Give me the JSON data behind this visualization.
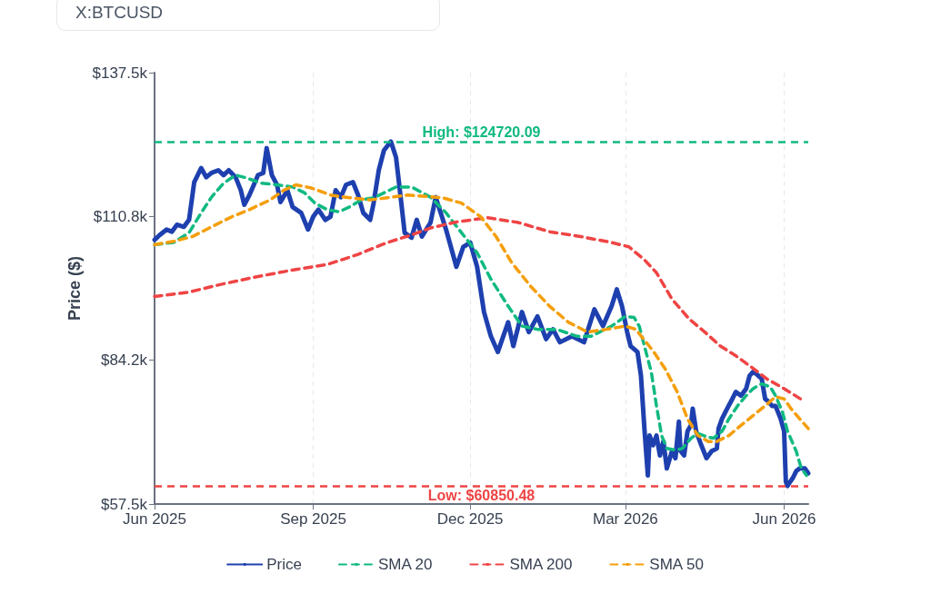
{
  "chart_data": {
    "type": "line",
    "title": "X:BTCUSD",
    "ylabel": "Price ($)",
    "xlim": [
      "2025-06-01",
      "2026-06-15"
    ],
    "xticks": [
      {
        "value": "2025-06-01",
        "label": "Jun 2025"
      },
      {
        "value": "2025-09-01",
        "label": "Sep 2025"
      },
      {
        "value": "2025-12-01",
        "label": "Dec 2025"
      },
      {
        "value": "2026-03-01",
        "label": "Mar 2026"
      },
      {
        "value": "2026-06-01",
        "label": "Jun 2026"
      }
    ],
    "ylim": [
      57500,
      137500
    ],
    "yticks": [
      {
        "value": 57500,
        "label": "$57.5k"
      },
      {
        "value": 84166.67,
        "label": "$84.2k"
      },
      {
        "value": 110833.33,
        "label": "$110.8k"
      },
      {
        "value": 137500,
        "label": "$137.5k"
      }
    ],
    "grid": "x",
    "legend": "bottom",
    "marker": "none",
    "ref_lines": [
      {
        "axis": "y",
        "value": 124720.09,
        "label": "High: $124720.09",
        "color": "#10b981",
        "line_style": "dashed"
      },
      {
        "axis": "y",
        "value": 60850.48,
        "label": "Low: $60850.48",
        "color": "#ef4444",
        "line_style": "dashed"
      }
    ],
    "series": [
      {
        "name": "Price",
        "color": "#1e40af",
        "line_style": "solid",
        "x": [
          "2025-06-01",
          "2025-06-04",
          "2025-06-08",
          "2025-06-11",
          "2025-06-14",
          "2025-06-18",
          "2025-06-21",
          "2025-06-24",
          "2025-06-28",
          "2025-07-01",
          "2025-07-04",
          "2025-07-08",
          "2025-07-11",
          "2025-07-14",
          "2025-07-18",
          "2025-07-21",
          "2025-07-23",
          "2025-07-26",
          "2025-07-31",
          "2025-08-03",
          "2025-08-05",
          "2025-08-08",
          "2025-08-11",
          "2025-08-13",
          "2025-08-17",
          "2025-08-20",
          "2025-08-25",
          "2025-08-29",
          "2025-09-01",
          "2025-09-04",
          "2025-09-08",
          "2025-09-11",
          "2025-09-14",
          "2025-09-17",
          "2025-09-20",
          "2025-09-24",
          "2025-09-27",
          "2025-09-30",
          "2025-10-04",
          "2025-10-06",
          "2025-10-09",
          "2025-10-12",
          "2025-10-16",
          "2025-10-19",
          "2025-10-21",
          "2025-10-24",
          "2025-10-28",
          "2025-10-31",
          "2025-11-03",
          "2025-11-08",
          "2025-11-11",
          "2025-11-17",
          "2025-11-23",
          "2025-11-27",
          "2025-12-01",
          "2025-12-05",
          "2025-12-09",
          "2025-12-13",
          "2025-12-17",
          "2025-12-23",
          "2025-12-26",
          "2025-12-31",
          "2026-01-04",
          "2026-01-09",
          "2026-01-14",
          "2026-01-18",
          "2026-01-22",
          "2026-01-29",
          "2026-02-05",
          "2026-02-11",
          "2026-02-16",
          "2026-02-21",
          "2026-02-24",
          "2026-02-27",
          "2026-03-02",
          "2026-03-04",
          "2026-03-08",
          "2026-03-10",
          "2026-03-12",
          "2026-03-14",
          "2026-03-15",
          "2026-03-17",
          "2026-03-19",
          "2026-03-21",
          "2026-03-23",
          "2026-03-25",
          "2026-03-28",
          "2026-03-30",
          "2026-04-01",
          "2026-04-02",
          "2026-04-04",
          "2026-04-06",
          "2026-04-08",
          "2026-04-09",
          "2026-04-11",
          "2026-04-14",
          "2026-04-17",
          "2026-04-20",
          "2026-04-23",
          "2026-04-24",
          "2026-04-26",
          "2026-04-29",
          "2026-05-02",
          "2026-05-04",
          "2026-05-07",
          "2026-05-10",
          "2026-05-12",
          "2026-05-14",
          "2026-05-16",
          "2026-05-19",
          "2026-05-21",
          "2026-05-23",
          "2026-05-25",
          "2026-05-27",
          "2026-05-30",
          "2026-06-01",
          "2026-06-02",
          "2026-06-03",
          "2026-06-04",
          "2026-06-06",
          "2026-06-08",
          "2026-06-10",
          "2026-06-13",
          "2026-06-15"
        ],
        "values": [
          106500,
          107400,
          108400,
          108000,
          109300,
          108900,
          110200,
          117200,
          119800,
          118100,
          118900,
          119400,
          118500,
          119400,
          118100,
          115700,
          113000,
          114800,
          118500,
          118900,
          123500,
          118500,
          116700,
          113500,
          115700,
          112600,
          111500,
          108400,
          110800,
          112100,
          110200,
          110800,
          115700,
          114400,
          116700,
          117200,
          114800,
          111500,
          110200,
          113300,
          119400,
          123100,
          124720.09,
          121800,
          116300,
          107800,
          106900,
          110200,
          107100,
          109700,
          114400,
          108400,
          101500,
          105200,
          106000,
          101500,
          93100,
          88600,
          85700,
          91200,
          86800,
          93100,
          89400,
          92300,
          88100,
          89900,
          87500,
          88600,
          87500,
          93600,
          90500,
          94200,
          97300,
          94200,
          89400,
          86800,
          85700,
          81300,
          71500,
          62800,
          70200,
          68400,
          70200,
          66500,
          69100,
          64100,
          67300,
          66000,
          72800,
          67300,
          66500,
          71000,
          72100,
          75200,
          71000,
          68400,
          66000,
          67300,
          67800,
          71500,
          73300,
          75200,
          77000,
          78300,
          77600,
          78900,
          81300,
          82000,
          81600,
          80700,
          77000,
          76500,
          75700,
          75700,
          73300,
          71000,
          61700,
          60850.48,
          61400,
          62300,
          63600,
          64100,
          64100,
          63200
        ]
      },
      {
        "name": "SMA 20",
        "color": "#10b981",
        "line_style": "dashed",
        "x": [
          "2025-06-01",
          "2025-06-12",
          "2025-06-21",
          "2025-06-28",
          "2025-07-04",
          "2025-07-11",
          "2025-07-18",
          "2025-07-24",
          "2025-08-02",
          "2025-08-11",
          "2025-08-20",
          "2025-08-27",
          "2025-09-02",
          "2025-09-09",
          "2025-09-16",
          "2025-09-22",
          "2025-09-29",
          "2025-10-06",
          "2025-10-12",
          "2025-10-19",
          "2025-10-28",
          "2025-11-08",
          "2025-11-17",
          "2025-11-26",
          "2025-12-05",
          "2025-12-13",
          "2025-12-23",
          "2025-12-31",
          "2026-01-09",
          "2026-01-20",
          "2026-02-01",
          "2026-02-09",
          "2026-02-21",
          "2026-03-01",
          "2026-03-06",
          "2026-03-09",
          "2026-03-12",
          "2026-03-16",
          "2026-03-19",
          "2026-03-22",
          "2026-03-25",
          "2026-03-30",
          "2026-04-03",
          "2026-04-08",
          "2026-04-12",
          "2026-04-17",
          "2026-04-21",
          "2026-04-26",
          "2026-04-30",
          "2026-05-05",
          "2026-05-10",
          "2026-05-14",
          "2026-05-19",
          "2026-05-24",
          "2026-05-27",
          "2026-05-31",
          "2026-06-03",
          "2026-06-08",
          "2026-06-11",
          "2026-06-14"
        ],
        "values": [
          105600,
          106000,
          107800,
          111500,
          114400,
          117000,
          118500,
          118000,
          117000,
          116700,
          116300,
          115200,
          113300,
          112100,
          111700,
          112600,
          113900,
          114300,
          115200,
          116300,
          116300,
          114400,
          111500,
          107800,
          104100,
          99200,
          94200,
          90500,
          89900,
          89900,
          88600,
          88600,
          90500,
          92300,
          92100,
          90500,
          86800,
          82000,
          75700,
          70200,
          67800,
          67500,
          67800,
          69700,
          70600,
          70000,
          69700,
          71000,
          73300,
          75700,
          77600,
          78900,
          79800,
          79200,
          77600,
          74600,
          71000,
          67300,
          64100,
          62800
        ]
      },
      {
        "name": "SMA 200",
        "color": "#ef4444",
        "line_style": "dashed",
        "x": [
          "2025-06-01",
          "2025-06-21",
          "2025-07-09",
          "2025-07-31",
          "2025-08-22",
          "2025-09-09",
          "2025-09-27",
          "2025-10-14",
          "2025-10-28",
          "2025-11-08",
          "2025-11-23",
          "2025-12-11",
          "2025-12-29",
          "2026-01-16",
          "2026-02-03",
          "2026-02-21",
          "2026-03-03",
          "2026-03-12",
          "2026-03-19",
          "2026-03-28",
          "2026-04-07",
          "2026-04-16",
          "2026-04-25",
          "2026-05-04",
          "2026-05-13",
          "2026-05-22",
          "2026-06-01",
          "2026-06-12"
        ],
        "values": [
          96000,
          96800,
          98200,
          99700,
          101000,
          101900,
          103800,
          106000,
          107400,
          108700,
          109800,
          110600,
          109700,
          108000,
          107100,
          106000,
          105200,
          102800,
          100400,
          95500,
          91800,
          89400,
          86800,
          85000,
          82900,
          80700,
          78900,
          76700
        ]
      },
      {
        "name": "SMA 50",
        "color": "#f59e0b",
        "line_style": "dashed",
        "x": [
          "2025-06-01",
          "2025-06-12",
          "2025-06-23",
          "2025-07-04",
          "2025-07-16",
          "2025-07-26",
          "2025-08-07",
          "2025-08-15",
          "2025-08-22",
          "2025-08-31",
          "2025-09-11",
          "2025-09-22",
          "2025-10-04",
          "2025-10-14",
          "2025-10-26",
          "2025-11-15",
          "2025-11-26",
          "2025-12-07",
          "2025-12-16",
          "2025-12-25",
          "2026-01-05",
          "2026-01-16",
          "2026-01-27",
          "2026-02-07",
          "2026-02-18",
          "2026-03-01",
          "2026-03-07",
          "2026-03-13",
          "2026-03-17",
          "2026-03-24",
          "2026-03-31",
          "2026-04-06",
          "2026-04-12",
          "2026-04-18",
          "2026-04-23",
          "2026-04-30",
          "2026-05-07",
          "2026-05-14",
          "2026-05-21",
          "2026-05-27",
          "2026-06-01",
          "2026-06-05",
          "2026-06-10",
          "2026-06-15"
        ],
        "values": [
          105600,
          106200,
          107100,
          108900,
          110800,
          112100,
          113900,
          115700,
          116700,
          116100,
          114800,
          114300,
          113900,
          114300,
          114800,
          114300,
          113300,
          110800,
          107100,
          102300,
          97900,
          94200,
          91200,
          89400,
          89900,
          90500,
          89900,
          87500,
          85900,
          82600,
          78300,
          73300,
          70200,
          69100,
          69100,
          70200,
          72100,
          73900,
          75700,
          77400,
          77000,
          75200,
          73300,
          71500
        ]
      }
    ]
  }
}
